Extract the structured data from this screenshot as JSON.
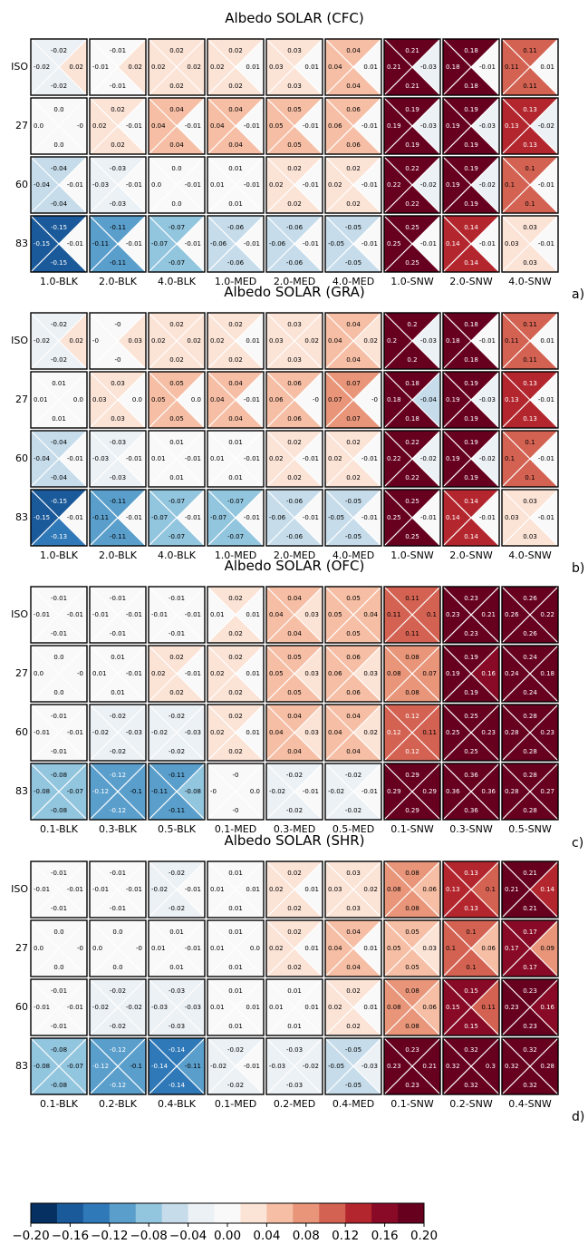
{
  "chart_data": [
    {
      "type": "heatmap",
      "title": "Albedo SOLAR (CFC)",
      "panel_label": "a)",
      "rows": [
        "ISO",
        "27",
        "60",
        "83"
      ],
      "columns": [
        "1.0-BLK",
        "2.0-BLK",
        "4.0-BLK",
        "1.0-MED",
        "2.0-MED",
        "4.0-MED",
        "1.0-SNW",
        "2.0-SNW",
        "4.0-SNW"
      ],
      "cells": [
        [
          [
            -0.02,
            0.02,
            -0.02,
            -0.02
          ],
          [
            -0.01,
            0.02,
            -0.01,
            -0.01
          ],
          [
            0.02,
            0.02,
            0.02,
            0.02
          ],
          [
            0.02,
            0.01,
            0.02,
            0.02
          ],
          [
            0.03,
            0.01,
            0.03,
            0.03
          ],
          [
            0.04,
            0.01,
            0.04,
            0.04
          ],
          [
            0.21,
            -0.03,
            0.21,
            0.21
          ],
          [
            0.18,
            -0.01,
            0.18,
            0.18
          ],
          [
            0.11,
            0.01,
            0.11,
            0.11
          ]
        ],
        [
          [
            0.0,
            0,
            0.0,
            0.0
          ],
          [
            0.02,
            -0.01,
            0.02,
            0.02
          ],
          [
            0.04,
            -0.01,
            0.04,
            0.04
          ],
          [
            0.04,
            -0.01,
            0.04,
            0.04
          ],
          [
            0.05,
            -0.01,
            0.05,
            0.05
          ],
          [
            0.06,
            -0.01,
            0.06,
            0.06
          ],
          [
            0.19,
            -0.03,
            0.19,
            0.19
          ],
          [
            0.19,
            -0.03,
            0.19,
            0.19
          ],
          [
            0.13,
            -0.02,
            0.13,
            0.13
          ]
        ],
        [
          [
            -0.04,
            -0.01,
            -0.04,
            -0.04
          ],
          [
            -0.03,
            -0.01,
            -0.03,
            -0.03
          ],
          [
            0.0,
            -0.01,
            0.0,
            0.0
          ],
          [
            0.01,
            -0.01,
            0.01,
            0.01
          ],
          [
            0.02,
            -0.01,
            0.02,
            0.02
          ],
          [
            0.02,
            -0.01,
            0.02,
            0.02
          ],
          [
            0.22,
            -0.02,
            0.22,
            0.22
          ],
          [
            0.19,
            -0.02,
            0.19,
            0.19
          ],
          [
            0.1,
            -0.01,
            0.1,
            0.1
          ]
        ],
        [
          [
            -0.15,
            -0.01,
            -0.15,
            -0.15
          ],
          [
            -0.11,
            -0.01,
            -0.11,
            -0.11
          ],
          [
            -0.07,
            -0.01,
            -0.07,
            -0.07
          ],
          [
            -0.06,
            -0.01,
            -0.06,
            -0.06
          ],
          [
            -0.06,
            -0.01,
            -0.06,
            -0.06
          ],
          [
            -0.05,
            -0.01,
            -0.05,
            -0.05
          ],
          [
            0.25,
            -0.01,
            0.25,
            0.25
          ],
          [
            0.14,
            -0.01,
            0.14,
            0.14
          ],
          [
            0.03,
            -0.01,
            0.03,
            0.03
          ]
        ]
      ]
    },
    {
      "type": "heatmap",
      "title": "Albedo SOLAR (GRA)",
      "panel_label": "b)",
      "rows": [
        "ISO",
        "27",
        "60",
        "83"
      ],
      "columns": [
        "1.0-BLK",
        "2.0-BLK",
        "4.0-BLK",
        "1.0-MED",
        "2.0-MED",
        "4.0-MED",
        "1.0-SNW",
        "2.0-SNW",
        "4.0-SNW"
      ],
      "cells": [
        [
          [
            -0.02,
            0.02,
            -0.02,
            -0.02
          ],
          [
            0,
            0.03,
            0,
            0
          ],
          [
            0.02,
            0.02,
            0.02,
            0.02
          ],
          [
            0.02,
            0.01,
            0.02,
            0.02
          ],
          [
            0.03,
            0.02,
            0.03,
            0.03
          ],
          [
            0.04,
            0.02,
            0.04,
            0.04
          ],
          [
            0.2,
            -0.03,
            0.2,
            0.2
          ],
          [
            0.18,
            -0.01,
            0.18,
            0.18
          ],
          [
            0.11,
            0.01,
            0.11,
            0.11
          ]
        ],
        [
          [
            0.01,
            0.0,
            0.01,
            0.01
          ],
          [
            0.03,
            0.0,
            0.03,
            0.03
          ],
          [
            0.05,
            0.0,
            0.05,
            0.05
          ],
          [
            0.04,
            -0.01,
            0.04,
            0.04
          ],
          [
            0.06,
            0,
            0.06,
            0.06
          ],
          [
            0.07,
            0,
            0.07,
            0.07
          ],
          [
            0.18,
            -0.04,
            0.18,
            0.18
          ],
          [
            0.19,
            -0.03,
            0.19,
            0.19
          ],
          [
            0.13,
            -0.01,
            0.13,
            0.13
          ]
        ],
        [
          [
            -0.04,
            -0.01,
            -0.04,
            -0.04
          ],
          [
            -0.03,
            -0.01,
            -0.03,
            -0.03
          ],
          [
            0.01,
            -0.01,
            0.01,
            0.01
          ],
          [
            0.01,
            -0.01,
            0.01,
            0.01
          ],
          [
            0.02,
            -0.01,
            0.02,
            0.02
          ],
          [
            0.02,
            -0.01,
            0.02,
            0.02
          ],
          [
            0.22,
            -0.02,
            0.22,
            0.22
          ],
          [
            0.19,
            -0.02,
            0.19,
            0.19
          ],
          [
            0.1,
            -0.01,
            0.1,
            0.1
          ]
        ],
        [
          [
            -0.15,
            -0.01,
            -0.13,
            -0.15
          ],
          [
            -0.11,
            -0.01,
            -0.11,
            -0.11
          ],
          [
            -0.07,
            -0.01,
            -0.07,
            -0.07
          ],
          [
            -0.07,
            -0.01,
            -0.07,
            -0.07
          ],
          [
            -0.06,
            -0.01,
            -0.06,
            -0.06
          ],
          [
            -0.05,
            -0.01,
            -0.05,
            -0.05
          ],
          [
            0.25,
            -0.01,
            0.25,
            0.25
          ],
          [
            0.14,
            -0.01,
            0.14,
            0.14
          ],
          [
            0.03,
            -0.01,
            0.03,
            0.03
          ]
        ]
      ]
    },
    {
      "type": "heatmap",
      "title": "Albedo SOLAR (OFC)",
      "panel_label": "c)",
      "rows": [
        "ISO",
        "27",
        "60",
        "83"
      ],
      "columns": [
        "0.1-BLK",
        "0.3-BLK",
        "0.5-BLK",
        "0.1-MED",
        "0.3-MED",
        "0.5-MED",
        "0.1-SNW",
        "0.3-SNW",
        "0.5-SNW"
      ],
      "cells": [
        [
          [
            -0.01,
            -0.01,
            -0.01,
            -0.01
          ],
          [
            -0.01,
            -0.01,
            -0.01,
            -0.01
          ],
          [
            -0.01,
            -0.01,
            -0.01,
            -0.01
          ],
          [
            0.02,
            0.01,
            0.02,
            0.01
          ],
          [
            0.04,
            0.03,
            0.04,
            0.04
          ],
          [
            0.05,
            0.04,
            0.05,
            0.05
          ],
          [
            0.11,
            0.1,
            0.11,
            0.11
          ],
          [
            0.23,
            0.21,
            0.23,
            0.23
          ],
          [
            0.26,
            0.22,
            0.26,
            0.26
          ]
        ],
        [
          [
            0.0,
            0,
            0.0,
            0.0
          ],
          [
            0.01,
            -0.01,
            0.01,
            0.01
          ],
          [
            0.02,
            -0.01,
            0.02,
            0.02
          ],
          [
            0.02,
            0.01,
            0.02,
            0.02
          ],
          [
            0.05,
            0.03,
            0.05,
            0.05
          ],
          [
            0.06,
            0.03,
            0.06,
            0.06
          ],
          [
            0.08,
            0.07,
            0.08,
            0.08
          ],
          [
            0.19,
            0.16,
            0.19,
            0.19
          ],
          [
            0.24,
            0.18,
            0.24,
            0.24
          ]
        ],
        [
          [
            -0.01,
            -0.01,
            -0.01,
            -0.01
          ],
          [
            -0.02,
            -0.03,
            -0.02,
            -0.02
          ],
          [
            -0.02,
            -0.03,
            -0.02,
            -0.02
          ],
          [
            0.02,
            0.01,
            0.02,
            0.02
          ],
          [
            0.04,
            0.03,
            0.04,
            0.04
          ],
          [
            0.04,
            0.02,
            0.04,
            0.04
          ],
          [
            0.12,
            0.11,
            0.12,
            0.12
          ],
          [
            0.25,
            0.23,
            0.25,
            0.25
          ],
          [
            0.28,
            0.23,
            0.28,
            0.28
          ]
        ],
        [
          [
            -0.08,
            -0.07,
            -0.08,
            -0.08
          ],
          [
            -0.12,
            -0.1,
            -0.12,
            -0.12
          ],
          [
            -0.11,
            -0.08,
            -0.11,
            -0.11
          ],
          [
            0,
            0.0,
            0,
            0
          ],
          [
            -0.02,
            -0.01,
            -0.02,
            -0.02
          ],
          [
            -0.02,
            -0.01,
            -0.02,
            -0.02
          ],
          [
            0.29,
            0.29,
            0.29,
            0.29
          ],
          [
            0.36,
            0.36,
            0.36,
            0.36
          ],
          [
            0.28,
            0.27,
            0.28,
            0.28
          ]
        ]
      ]
    },
    {
      "type": "heatmap",
      "title": "Albedo SOLAR (SHR)",
      "panel_label": "d)",
      "rows": [
        "ISO",
        "27",
        "60",
        "83"
      ],
      "columns": [
        "0.1-BLK",
        "0.2-BLK",
        "0.4-BLK",
        "0.1-MED",
        "0.2-MED",
        "0.4-MED",
        "0.1-SNW",
        "0.2-SNW",
        "0.4-SNW"
      ],
      "cells": [
        [
          [
            -0.01,
            -0.01,
            -0.01,
            -0.01
          ],
          [
            -0.01,
            -0.01,
            -0.01,
            -0.01
          ],
          [
            -0.02,
            -0.01,
            -0.02,
            -0.02
          ],
          [
            0.01,
            0.01,
            0.01,
            0.01
          ],
          [
            0.02,
            0.01,
            0.02,
            0.02
          ],
          [
            0.03,
            0.02,
            0.03,
            0.03
          ],
          [
            0.08,
            0.06,
            0.08,
            0.08
          ],
          [
            0.13,
            0.1,
            0.13,
            0.13
          ],
          [
            0.21,
            0.14,
            0.21,
            0.21
          ]
        ],
        [
          [
            0.0,
            0,
            0.0,
            0.0
          ],
          [
            0.0,
            0,
            0.0,
            0.0
          ],
          [
            0.01,
            -0.01,
            0.01,
            0.01
          ],
          [
            0.01,
            0.0,
            0.01,
            0.01
          ],
          [
            0.02,
            0.01,
            0.02,
            0.02
          ],
          [
            0.04,
            0.01,
            0.04,
            0.04
          ],
          [
            0.05,
            0.03,
            0.05,
            0.05
          ],
          [
            0.1,
            0.06,
            0.1,
            0.1
          ],
          [
            0.17,
            0.09,
            0.17,
            0.17
          ]
        ],
        [
          [
            -0.01,
            -0.01,
            -0.01,
            -0.01
          ],
          [
            -0.02,
            -0.02,
            -0.02,
            -0.02
          ],
          [
            -0.03,
            -0.03,
            -0.03,
            -0.03
          ],
          [
            0.01,
            0.01,
            0.01,
            0.01
          ],
          [
            0.01,
            0.01,
            0.01,
            0.01
          ],
          [
            0.02,
            0.01,
            0.02,
            0.02
          ],
          [
            0.08,
            0.06,
            0.08,
            0.08
          ],
          [
            0.15,
            0.11,
            0.15,
            0.15
          ],
          [
            0.23,
            0.16,
            0.23,
            0.23
          ]
        ],
        [
          [
            -0.08,
            -0.07,
            -0.08,
            -0.08
          ],
          [
            -0.12,
            -0.1,
            -0.12,
            -0.12
          ],
          [
            -0.14,
            -0.11,
            -0.14,
            -0.14
          ],
          [
            -0.02,
            -0.01,
            -0.02,
            -0.02
          ],
          [
            -0.03,
            -0.02,
            -0.03,
            -0.03
          ],
          [
            -0.05,
            -0.03,
            -0.05,
            -0.05
          ],
          [
            0.23,
            0.21,
            0.23,
            0.23
          ],
          [
            0.32,
            0.3,
            0.32,
            0.32
          ],
          [
            0.32,
            0.28,
            0.32,
            0.32
          ]
        ]
      ]
    }
  ],
  "colorbar": {
    "range": [
      -0.2,
      0.2
    ],
    "tick_labels": [
      "−0.20",
      "−0.16",
      "−0.12",
      "−0.08",
      "−0.04",
      "0.00",
      "0.04",
      "0.08",
      "0.12",
      "0.16",
      "0.20"
    ],
    "colors": [
      "#053061",
      "#1b5a9a",
      "#3079b8",
      "#5a9ecb",
      "#92c5de",
      "#c6dcea",
      "#ecf1f5",
      "#f9f9f9",
      "#fbe3d6",
      "#f6bea4",
      "#e89579",
      "#d46252",
      "#b4262e",
      "#880a26",
      "#67001f"
    ]
  }
}
